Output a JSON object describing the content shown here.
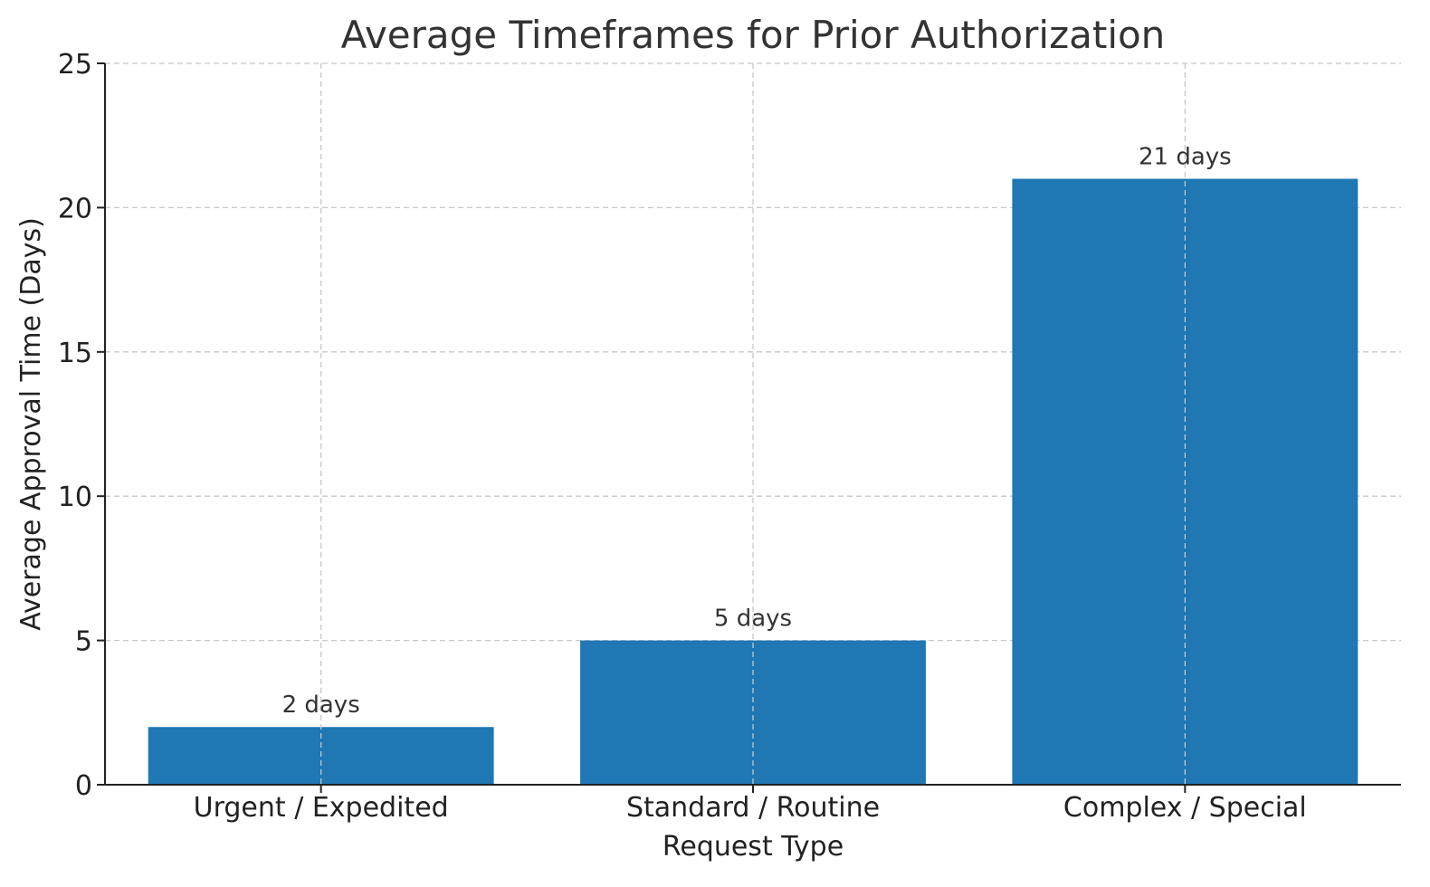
{
  "chart_data": {
    "type": "bar",
    "title": "Average Timeframes for Prior Authorization",
    "xlabel": "Request Type",
    "ylabel": "Average Approval Time (Days)",
    "categories": [
      "Urgent / Expedited",
      "Standard / Routine",
      "Complex / Special"
    ],
    "values": [
      2,
      5,
      21
    ],
    "bar_labels": [
      "2 days",
      "5 days",
      "21 days"
    ],
    "ylim": [
      0,
      25
    ],
    "yticks": [
      0,
      5,
      10,
      15,
      20,
      25
    ],
    "grid": true,
    "bar_color": "#1f77b4"
  }
}
